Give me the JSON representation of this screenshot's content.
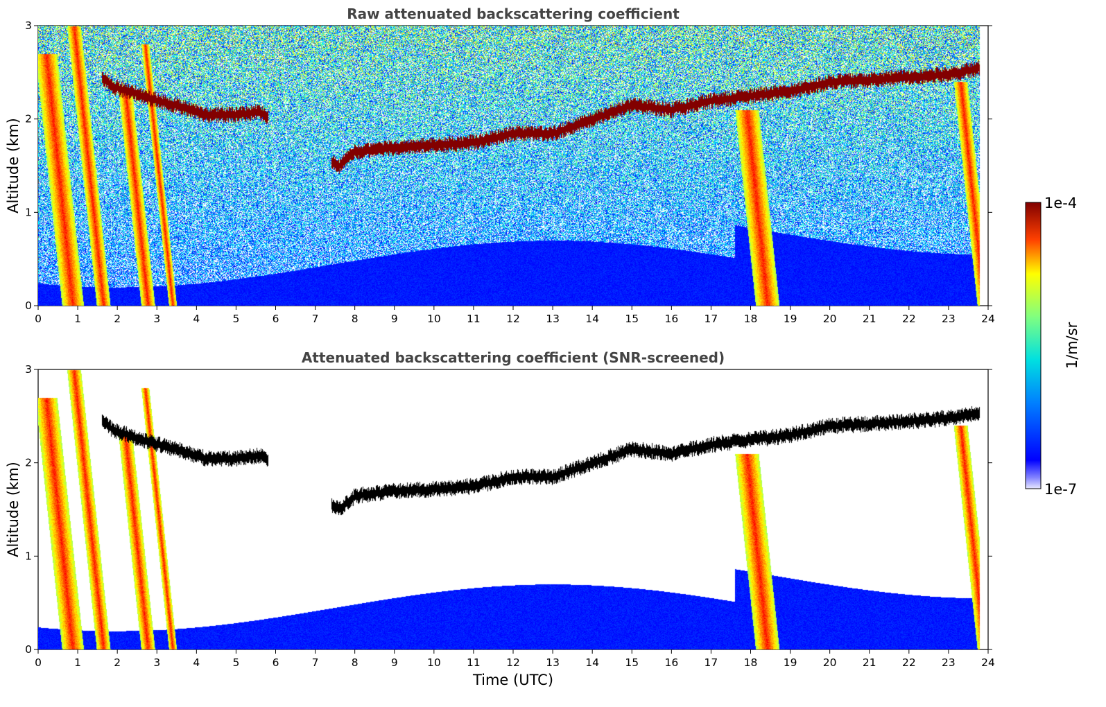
{
  "chart_data": [
    {
      "type": "heatmap",
      "title": "Raw attenuated backscattering coefficient",
      "xlabel": "",
      "ylabel": "Altitude (km)",
      "xlim": [
        0,
        24
      ],
      "ylim": [
        0,
        3
      ],
      "xticks": [
        0,
        1,
        2,
        3,
        4,
        5,
        6,
        7,
        8,
        9,
        10,
        11,
        12,
        13,
        14,
        15,
        16,
        17,
        18,
        19,
        20,
        21,
        22,
        23,
        24
      ],
      "yticks": [
        0,
        1,
        2,
        3
      ],
      "colorscale": "jet",
      "value_range": [
        "1e-7",
        "1e-4"
      ],
      "cloud_layer_altitude_km": {
        "time": [
          1.6,
          1.9,
          3.0,
          3.5,
          4.2,
          5.0,
          5.6,
          7.6,
          8.0,
          9.0,
          10.0,
          11.0,
          12.0,
          13.0,
          14.0,
          15.0,
          16.0,
          17.0,
          18.0,
          19.0,
          20.0,
          21.0,
          22.0,
          23.0,
          23.8
        ],
        "altitude": [
          2.45,
          2.35,
          2.2,
          2.15,
          2.05,
          2.05,
          2.08,
          1.5,
          1.65,
          1.7,
          1.72,
          1.75,
          1.85,
          1.85,
          2.0,
          2.15,
          2.1,
          2.2,
          2.25,
          2.3,
          2.4,
          2.42,
          2.45,
          2.48,
          2.55
        ]
      }
    },
    {
      "type": "heatmap",
      "title": "Attenuated backscattering coefficient (SNR-screened)",
      "xlabel": "Time (UTC)",
      "ylabel": "Altitude (km)",
      "xlim": [
        0,
        24
      ],
      "ylim": [
        0,
        3
      ],
      "xticks": [
        0,
        1,
        2,
        3,
        4,
        5,
        6,
        7,
        8,
        9,
        10,
        11,
        12,
        13,
        14,
        15,
        16,
        17,
        18,
        19,
        20,
        21,
        22,
        23,
        24
      ],
      "yticks": [
        0,
        1,
        2,
        3
      ],
      "colorscale": "jet",
      "value_range": [
        "1e-7",
        "1e-4"
      ]
    }
  ],
  "colorbar": {
    "max_label": "1e-4",
    "min_label": "1e-7",
    "unit_label": "1/m/sr"
  }
}
